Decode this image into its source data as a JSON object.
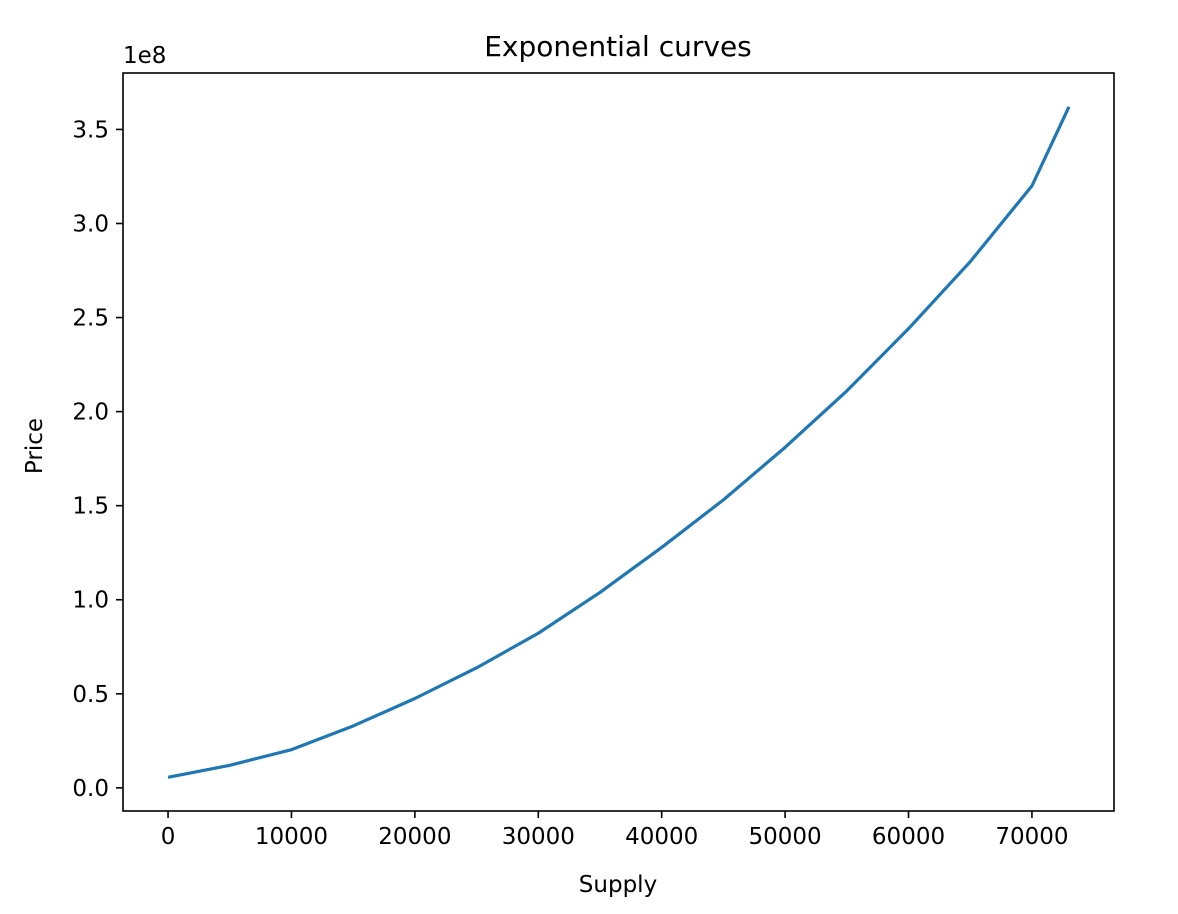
{
  "chart_data": {
    "type": "line",
    "title": "Exponential curves",
    "xlabel": "Supply",
    "ylabel": "Price",
    "y_offset_text": "1e8",
    "y_scale": 100000000,
    "xlim": [
      -3650,
      76650
    ],
    "ylim": [
      -12300000,
      380000000
    ],
    "x_ticks": [
      0,
      10000,
      20000,
      30000,
      40000,
      50000,
      60000,
      70000
    ],
    "x_tick_labels": [
      "0",
      "10000",
      "20000",
      "30000",
      "40000",
      "50000",
      "60000",
      "70000"
    ],
    "y_ticks": [
      0,
      50000000,
      100000000,
      150000000,
      200000000,
      250000000,
      300000000,
      350000000
    ],
    "y_tick_labels": [
      "0.0",
      "0.5",
      "1.0",
      "1.5",
      "2.0",
      "2.5",
      "3.0",
      "3.5"
    ],
    "grid": false,
    "series": [
      {
        "color": "#1f77b4",
        "x": [
          0,
          5000,
          10000,
          15000,
          20000,
          25000,
          30000,
          35000,
          40000,
          45000,
          50000,
          55000,
          60000,
          65000,
          70000,
          73000
        ],
        "y": [
          5600000,
          12000000,
          20300000,
          32900000,
          47500000,
          63800000,
          82200000,
          103900000,
          127800000,
          153100000,
          181000000,
          211000000,
          244100000,
          279700000,
          320000000,
          362000000
        ]
      }
    ]
  }
}
